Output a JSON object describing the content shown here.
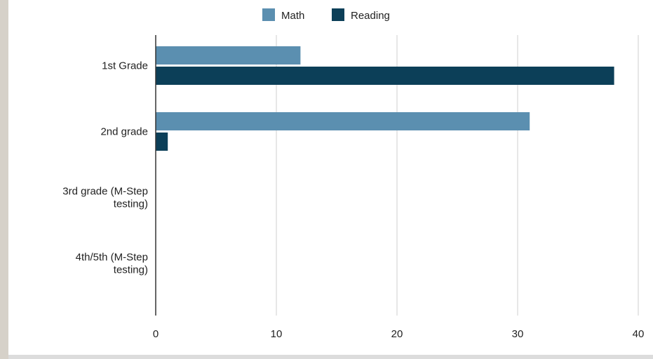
{
  "chart_data": {
    "type": "bar",
    "orientation": "horizontal",
    "categories": [
      [
        "1st Grade"
      ],
      [
        "2nd grade"
      ],
      [
        "3rd grade (M-Step",
        "testing)"
      ],
      [
        "4th/5th (M-Step",
        "testing)"
      ]
    ],
    "series": [
      {
        "name": "Math",
        "color": "#5b8fb0",
        "values": [
          12,
          31,
          0,
          0
        ]
      },
      {
        "name": "Reading",
        "color": "#0c3f58",
        "values": [
          38,
          1,
          0,
          0
        ]
      }
    ],
    "xlim": [
      0,
      40
    ],
    "xticks": [
      0,
      10,
      20,
      30,
      40
    ],
    "grid": true,
    "legend": "top-center",
    "title": "",
    "xlabel": "",
    "ylabel": ""
  }
}
